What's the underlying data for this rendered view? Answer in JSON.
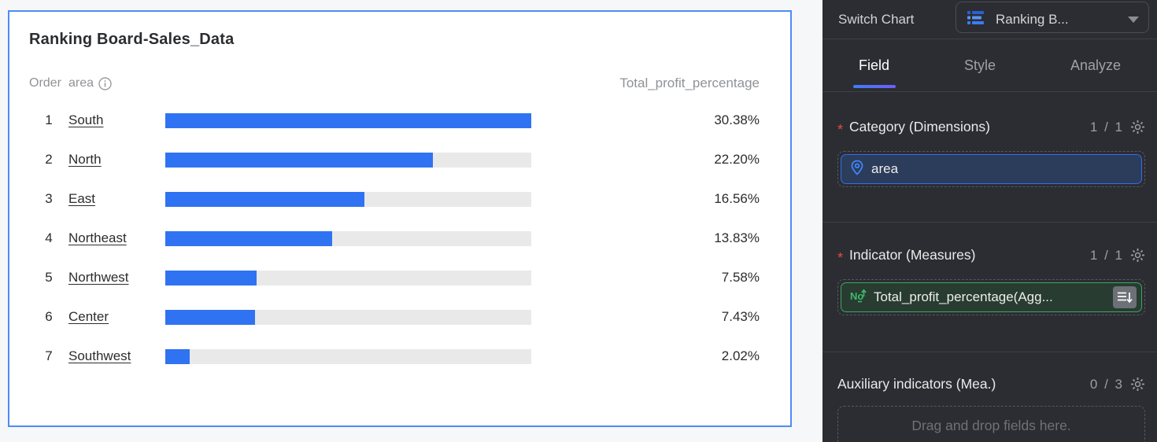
{
  "chart_card": {
    "title": "Ranking Board-Sales_Data",
    "columns": {
      "order": "Order",
      "area": "area",
      "value": "Total_profit_percentage"
    },
    "rows": [
      {
        "order": "1",
        "area": "South",
        "value": "30.38%",
        "pct": 30.38
      },
      {
        "order": "2",
        "area": "North",
        "value": "22.20%",
        "pct": 22.2
      },
      {
        "order": "3",
        "area": "East",
        "value": "16.56%",
        "pct": 16.56
      },
      {
        "order": "4",
        "area": "Northeast",
        "value": "13.83%",
        "pct": 13.83
      },
      {
        "order": "5",
        "area": "Northwest",
        "value": "7.58%",
        "pct": 7.58
      },
      {
        "order": "6",
        "area": "Center",
        "value": "7.43%",
        "pct": 7.43
      },
      {
        "order": "7",
        "area": "Southwest",
        "value": "2.02%",
        "pct": 2.02
      }
    ],
    "max_pct": 30.38,
    "colors": {
      "bar": "#2f73f3",
      "track": "#e9e9e9",
      "card_border": "#4e8bf7"
    }
  },
  "chart_data": {
    "type": "bar",
    "title": "Ranking Board-Sales_Data",
    "categories": [
      "South",
      "North",
      "East",
      "Northeast",
      "Northwest",
      "Center",
      "Southwest"
    ],
    "values": [
      30.38,
      22.2,
      16.56,
      13.83,
      7.58,
      7.43,
      2.02
    ],
    "value_unit": "%",
    "xlabel": "area",
    "ylabel": "Total_profit_percentage",
    "orientation": "horizontal",
    "xlim": [
      0,
      30.38
    ],
    "grid": false,
    "legend": false
  },
  "panel": {
    "switch_chart_label": "Switch Chart",
    "chart_type_dropdown": {
      "value": "Ranking B...",
      "icon": "ranking-list-icon"
    },
    "tabs": [
      {
        "label": "Field"
      },
      {
        "label": "Style"
      },
      {
        "label": "Analyze"
      }
    ],
    "active_tab": "Field",
    "sections": [
      {
        "label": "Category (Dimensions)",
        "required": "*",
        "count": "1 / 1",
        "field": {
          "name": "area",
          "icon": "location-pin-icon"
        }
      },
      {
        "label": "Indicator (Measures)",
        "required": "*",
        "count": "1 / 1",
        "field": {
          "name": "Total_profit_percentage(Agg...",
          "icon": "measure-number-icon"
        }
      },
      {
        "label": "Auxiliary indicators (Mea.)",
        "count": "0 / 3",
        "placeholder": "Drag and drop fields here."
      }
    ],
    "colors": {
      "panel_bg": "#2b2d32",
      "dimension": "#2f6ff2",
      "measure": "#3fa661",
      "accent": "#3f7cf6"
    }
  }
}
